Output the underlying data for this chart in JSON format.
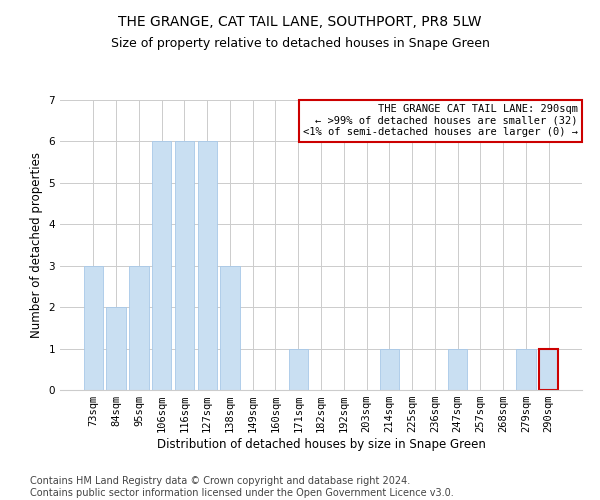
{
  "title": "THE GRANGE, CAT TAIL LANE, SOUTHPORT, PR8 5LW",
  "subtitle": "Size of property relative to detached houses in Snape Green",
  "xlabel": "Distribution of detached houses by size in Snape Green",
  "ylabel": "Number of detached properties",
  "categories": [
    "73sqm",
    "84sqm",
    "95sqm",
    "106sqm",
    "116sqm",
    "127sqm",
    "138sqm",
    "149sqm",
    "160sqm",
    "171sqm",
    "182sqm",
    "192sqm",
    "203sqm",
    "214sqm",
    "225sqm",
    "236sqm",
    "247sqm",
    "257sqm",
    "268sqm",
    "279sqm",
    "290sqm"
  ],
  "values": [
    3,
    2,
    3,
    6,
    6,
    6,
    3,
    0,
    0,
    1,
    0,
    0,
    0,
    1,
    0,
    0,
    1,
    0,
    0,
    1,
    1
  ],
  "bar_color": "#c9dff2",
  "bar_edge_color": "#a8c8e8",
  "highlight_index": 20,
  "highlight_bar_edge_color": "#cc0000",
  "annotation_box_text": "THE GRANGE CAT TAIL LANE: 290sqm\n← >99% of detached houses are smaller (32)\n<1% of semi-detached houses are larger (0) →",
  "annotation_box_color": "#ffffff",
  "annotation_box_edge_color": "#cc0000",
  "ylim": [
    0,
    7
  ],
  "yticks": [
    0,
    1,
    2,
    3,
    4,
    5,
    6,
    7
  ],
  "grid_color": "#cccccc",
  "background_color": "#ffffff",
  "footer_line1": "Contains HM Land Registry data © Crown copyright and database right 2024.",
  "footer_line2": "Contains public sector information licensed under the Open Government Licence v3.0.",
  "title_fontsize": 10,
  "subtitle_fontsize": 9,
  "xlabel_fontsize": 8.5,
  "ylabel_fontsize": 8.5,
  "tick_fontsize": 7.5,
  "footer_fontsize": 7,
  "annotation_fontsize": 7.5
}
